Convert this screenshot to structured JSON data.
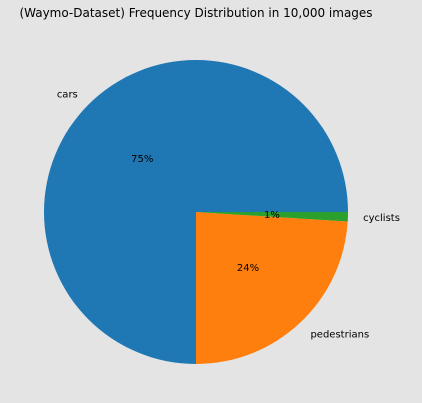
{
  "chart_data": {
    "type": "pie",
    "title": "(Waymo-Dataset) Frequency Distribution in 10,000 images",
    "slices": [
      {
        "label": "cars",
        "value": 75,
        "pct_label": "75%",
        "color": "#1f77b4"
      },
      {
        "label": "pedestrians",
        "value": 24,
        "pct_label": "24%",
        "color": "#ff7f0e"
      },
      {
        "label": "cyclists",
        "value": 1,
        "pct_label": "1%",
        "color": "#2ca02c"
      }
    ]
  }
}
